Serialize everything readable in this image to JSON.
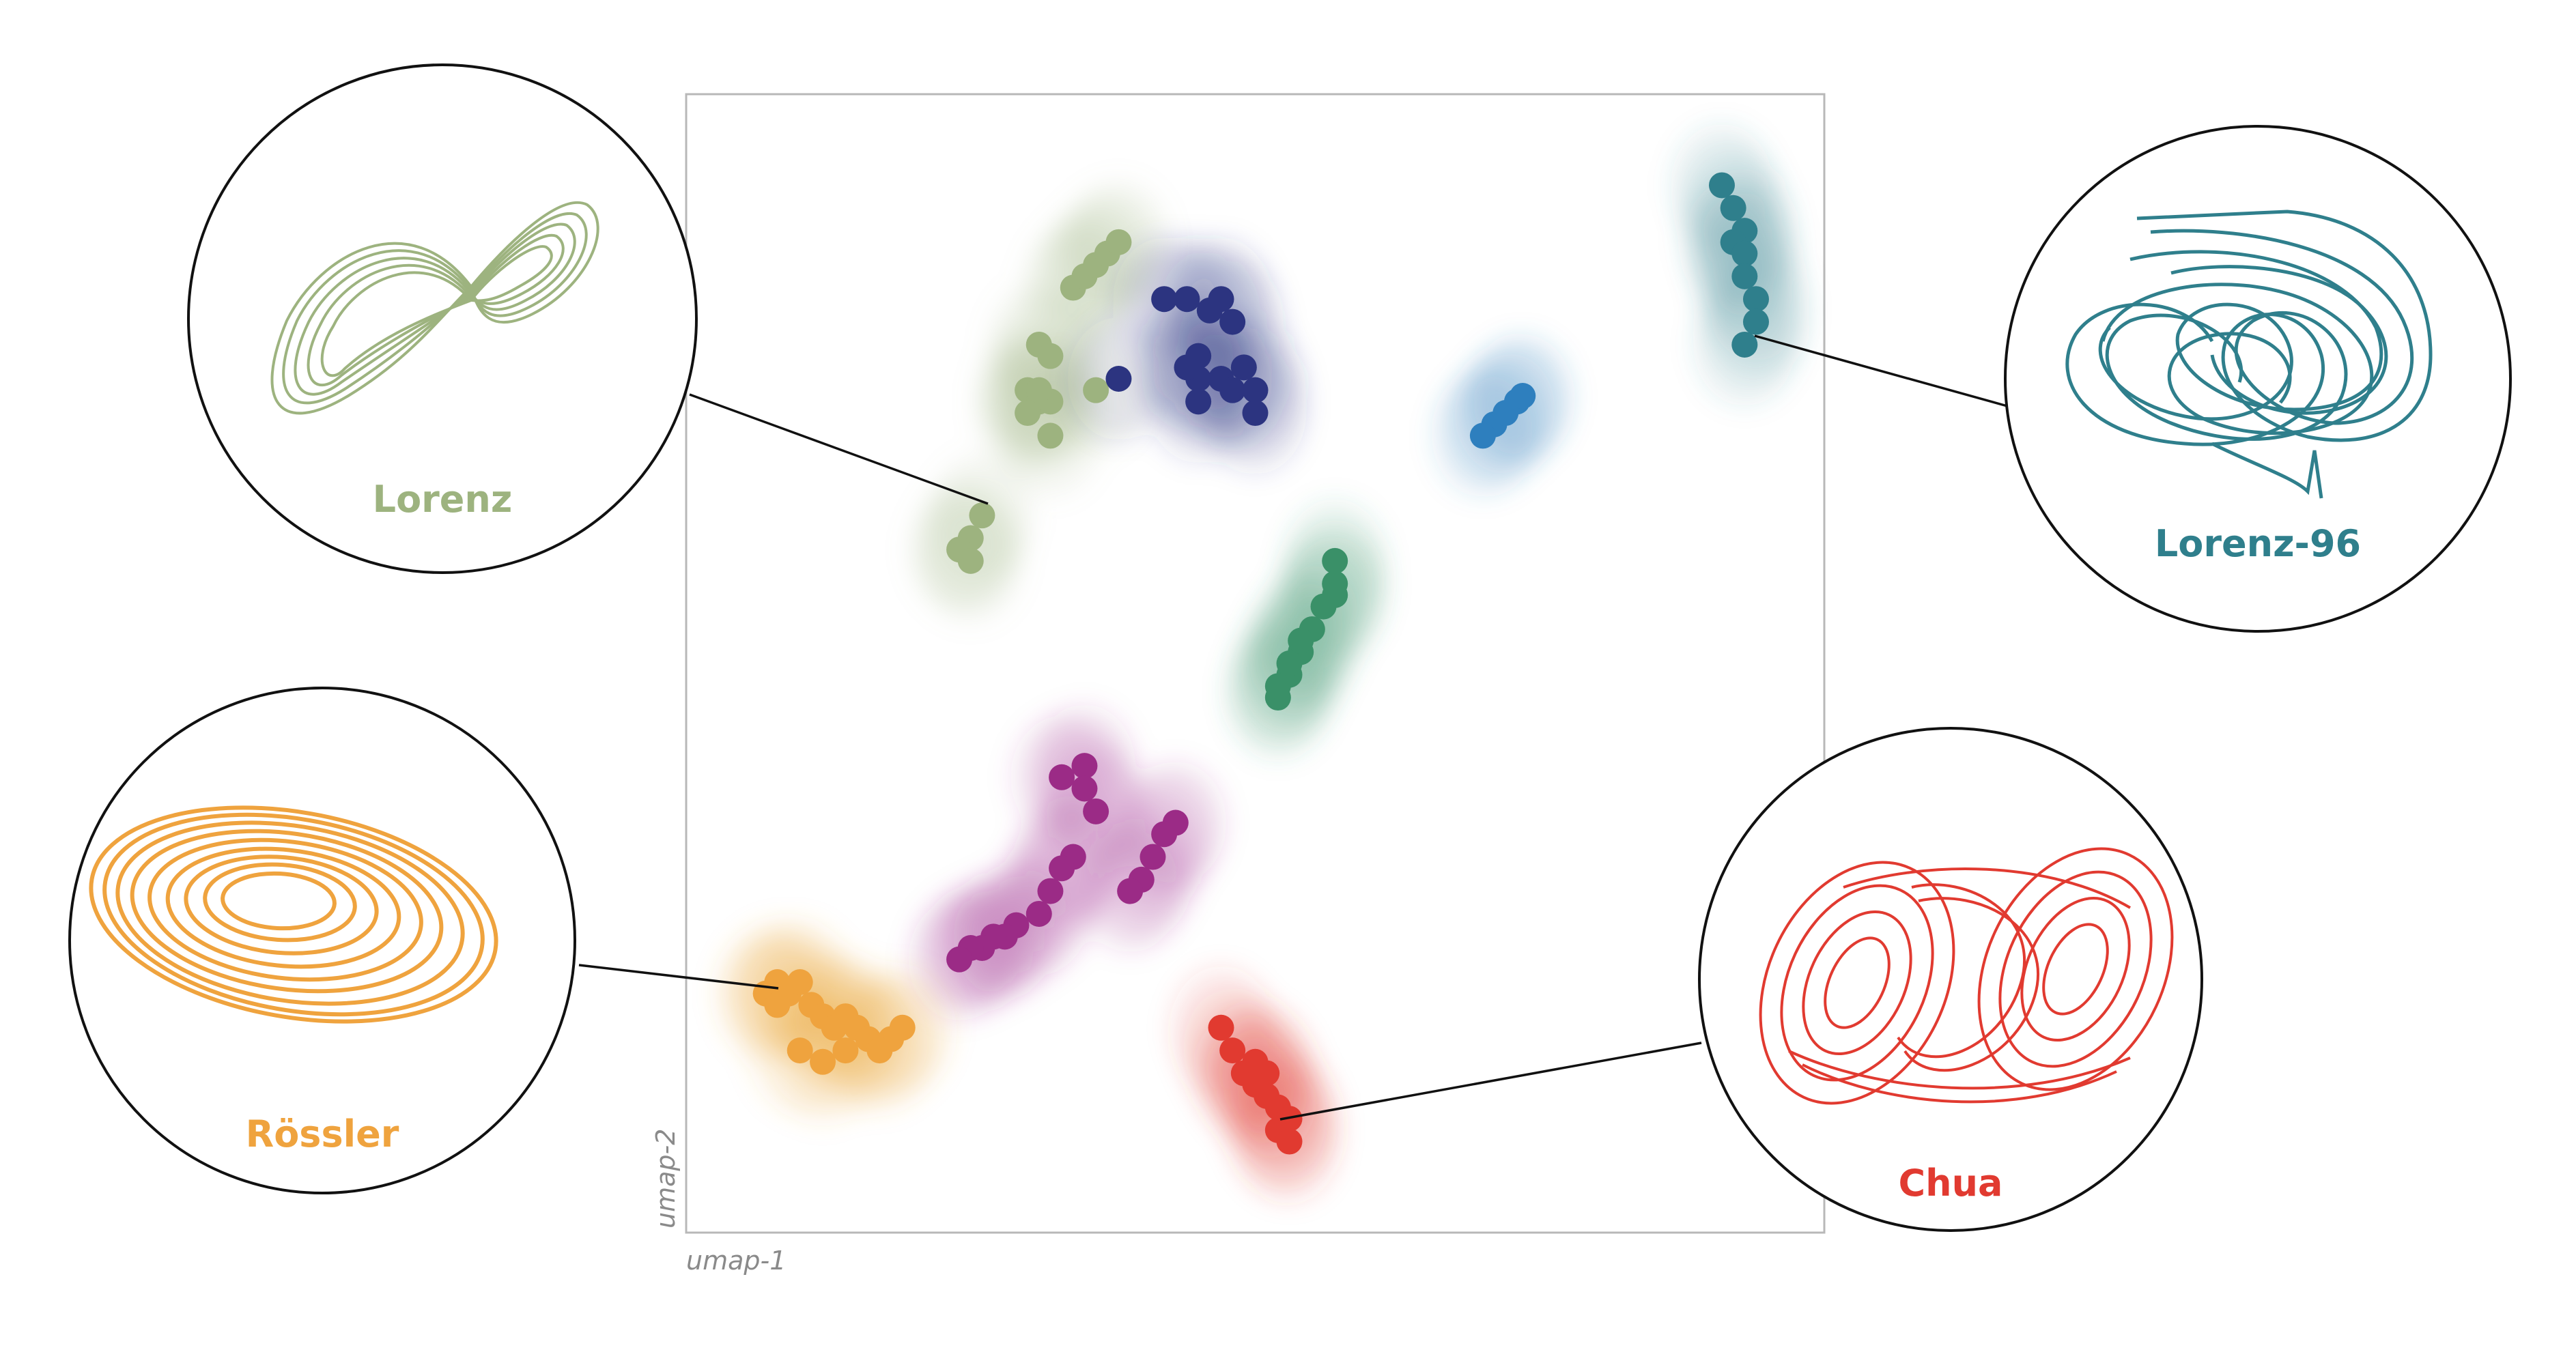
{
  "chart_data": {
    "type": "scatter",
    "xlabel": "umap-1",
    "ylabel": "umap-2",
    "xlim": [
      0,
      10
    ],
    "ylim": [
      0,
      10
    ],
    "grid": false,
    "legend": "none",
    "series": [
      {
        "name": "Lorenz",
        "color": "#9DB37F",
        "x": [
          3.4,
          3.5,
          3.6,
          3.7,
          3.8,
          3.1,
          3.2,
          3.0,
          3.1,
          3.0,
          3.2,
          3.2,
          3.1,
          3.6,
          2.6,
          2.5,
          2.4,
          2.5
        ],
        "y": [
          8.3,
          8.4,
          8.5,
          8.6,
          8.7,
          7.8,
          7.7,
          7.4,
          7.3,
          7.2,
          7.0,
          7.3,
          7.4,
          7.4,
          6.3,
          6.1,
          6.0,
          5.9
        ]
      },
      {
        "name": "",
        "color": "#2C3480",
        "x": [
          4.2,
          4.4,
          4.6,
          4.7,
          4.8,
          4.5,
          4.5,
          4.7,
          4.9,
          4.8,
          4.5,
          4.4,
          5.0,
          5.0,
          3.8
        ],
        "y": [
          8.2,
          8.2,
          8.1,
          8.2,
          8.0,
          7.7,
          7.5,
          7.5,
          7.6,
          7.4,
          7.3,
          7.6,
          7.4,
          7.2,
          7.5
        ]
      },
      {
        "name": "",
        "color": "#2E7FBE",
        "x": [
          7.1,
          7.2,
          7.3,
          7.35,
          7.0
        ],
        "y": [
          7.1,
          7.2,
          7.3,
          7.35,
          7.0
        ]
      },
      {
        "name": "Lorenz-96",
        "color": "#2F7F8C",
        "x": [
          9.1,
          9.2,
          9.3,
          9.2,
          9.3,
          9.3,
          9.4,
          9.4,
          9.3
        ],
        "y": [
          9.2,
          9.0,
          8.8,
          8.7,
          8.6,
          8.4,
          8.2,
          8.0,
          7.8
        ]
      },
      {
        "name": "",
        "color": "#3A9068",
        "x": [
          5.7,
          5.7,
          5.7,
          5.6,
          5.5,
          5.4,
          5.3,
          5.2,
          5.4,
          5.3,
          5.2
        ],
        "y": [
          5.9,
          5.7,
          5.6,
          5.5,
          5.3,
          5.1,
          4.9,
          4.7,
          5.2,
          5.0,
          4.8
        ]
      },
      {
        "name": "",
        "color": "#9B2B86",
        "x": [
          3.3,
          3.5,
          3.5,
          3.6,
          3.4,
          3.3,
          3.2,
          3.1,
          2.9,
          2.8,
          2.7,
          2.6,
          2.5,
          2.4,
          4.3,
          4.2,
          4.1,
          4.0,
          3.9
        ],
        "y": [
          4.0,
          4.1,
          3.9,
          3.7,
          3.3,
          3.2,
          3.0,
          2.8,
          2.7,
          2.6,
          2.6,
          2.5,
          2.5,
          2.4,
          3.6,
          3.5,
          3.3,
          3.1,
          3.0
        ]
      },
      {
        "name": "Rössler",
        "color": "#EFA33E",
        "x": [
          0.7,
          0.8,
          0.9,
          1.0,
          1.1,
          1.2,
          1.3,
          1.4,
          1.5,
          1.6,
          1.8,
          1.7,
          1.9,
          1.0,
          1.2,
          1.4,
          0.8
        ],
        "y": [
          2.1,
          2.2,
          2.1,
          2.2,
          2.0,
          1.9,
          1.8,
          1.9,
          1.8,
          1.7,
          1.7,
          1.6,
          1.8,
          1.6,
          1.5,
          1.6,
          2.0
        ],
        "_": "x"
      },
      {
        "name": "Chua",
        "color": "#E13A30",
        "x": [
          4.7,
          4.8,
          4.9,
          5.0,
          5.1,
          5.2,
          5.3,
          5.2,
          5.3,
          5.1,
          5.0
        ],
        "y": [
          1.8,
          1.6,
          1.4,
          1.3,
          1.2,
          1.1,
          1.0,
          0.9,
          0.8,
          1.4,
          1.5
        ]
      }
    ]
  },
  "labels": {
    "lorenz": "Lorenz",
    "lorenz96": "Lorenz-96",
    "rossler": "Rössler",
    "chua": "Chua",
    "xaxis": "umap-1",
    "yaxis": "umap-2"
  }
}
